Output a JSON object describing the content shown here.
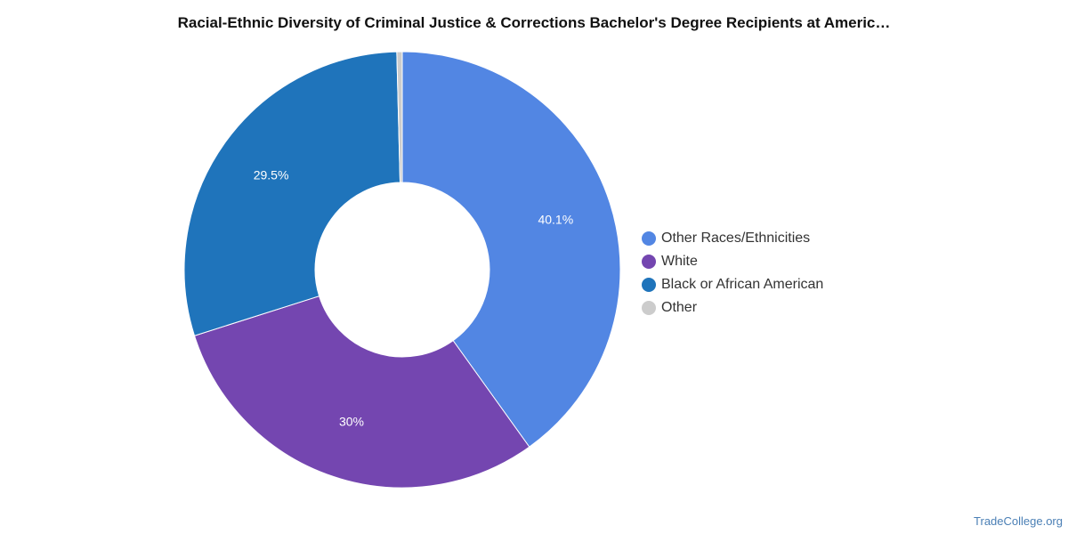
{
  "chart_data": {
    "type": "pie",
    "title": "Racial-Ethnic Diversity of Criminal Justice & Corrections Bachelor's Degree Recipients at Americ…",
    "slices": [
      {
        "name": "Other Races/Ethnicities",
        "value": 40.1,
        "label": "40.1%",
        "color": "#5286e3"
      },
      {
        "name": "White",
        "value": 30.0,
        "label": "30%",
        "color": "#7446b0"
      },
      {
        "name": "Black or African American",
        "value": 29.5,
        "label": "29.5%",
        "color": "#1f74bb"
      },
      {
        "name": "Other",
        "value": 0.4,
        "label": "",
        "color": "#cccccc"
      }
    ],
    "donut": true,
    "legend_position": "right"
  },
  "footer": {
    "source": "TradeCollege.org"
  }
}
